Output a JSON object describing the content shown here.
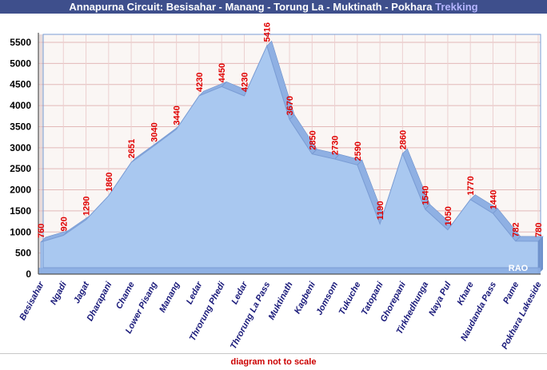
{
  "page": {
    "title_main": "Annapurna Circuit: Besisahar - Manang - Torung La - Muktinath - Pokhara",
    "title_accent": "Trekking",
    "footer_note": "diagram not to scale",
    "watermark": "RAO"
  },
  "colors": {
    "title_bar": "#3e4f8c",
    "title_accent": "#b5b5ff",
    "area_fill": "#a9c8f0",
    "area_edge": "#7d9fd6",
    "data_label": "#e00000",
    "tick_label_x": "#1a1a7a",
    "footer_text": "#cc0000",
    "plot_bg": "#faf6f4"
  },
  "chart_data": {
    "type": "area",
    "title": "Annapurna Circuit: Besisahar - Manang - Torung La - Muktinath - Pokhara Trekking",
    "xlabel": "",
    "ylabel": "",
    "ylim": [
      0,
      5500
    ],
    "yticks": [
      0,
      500,
      1000,
      1500,
      2000,
      2500,
      3000,
      3500,
      4000,
      4500,
      5000,
      5500
    ],
    "grid": true,
    "legend": "none",
    "categories": [
      "Besisahar",
      "Ngadi",
      "Jagat",
      "Dharapani",
      "Chame",
      "Lower Pisang",
      "Manang",
      "Ledar",
      "Throrung Phedi",
      "Ledar",
      "Throrung La Pass",
      "Muktinath",
      "Kagbeni",
      "Jomsom",
      "Tukuche",
      "Tatopani",
      "Ghorepani",
      "Tirkhedhunga",
      "Naya Pul",
      "Khare",
      "Naudanda Pass",
      "Pame",
      "Pokhara Lakeside"
    ],
    "values": [
      760,
      920,
      1290,
      1860,
      2651,
      3040,
      3440,
      4230,
      4450,
      4230,
      5416,
      3670,
      2850,
      2730,
      2590,
      1190,
      2860,
      1540,
      1050,
      1770,
      1440,
      782,
      780
    ]
  }
}
